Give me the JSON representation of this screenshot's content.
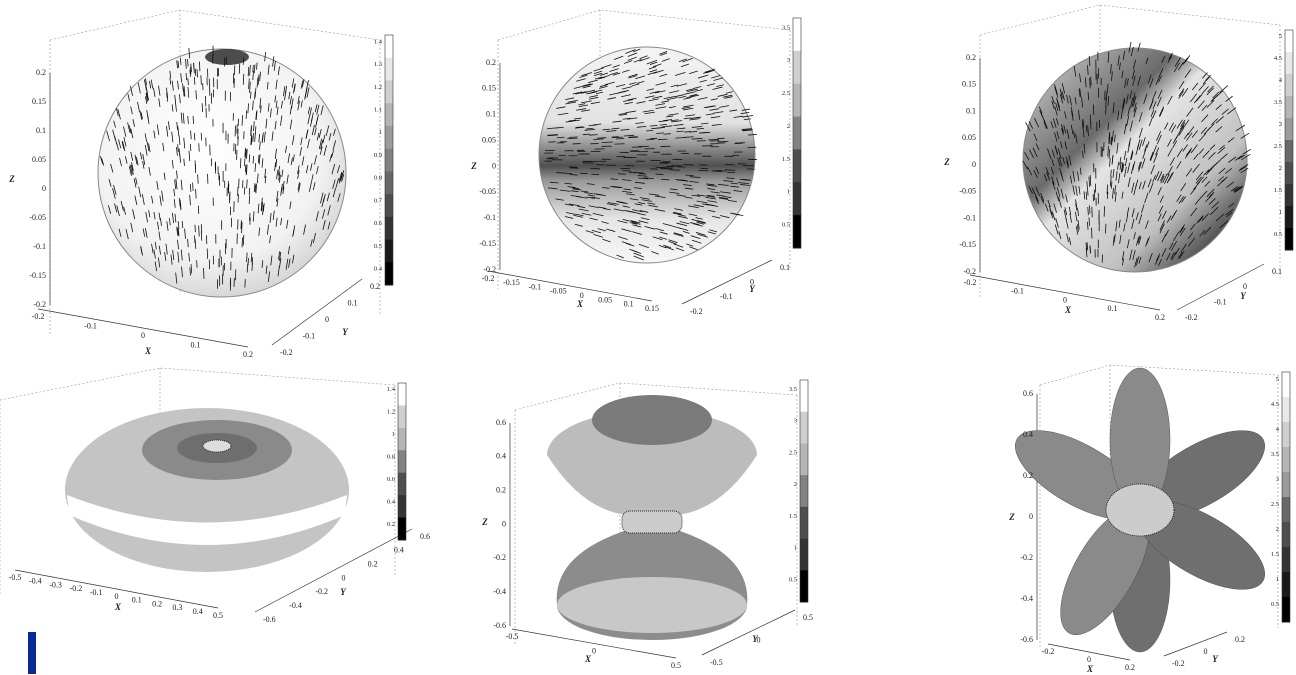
{
  "panels": [
    {
      "labels": {
        "x": "X",
        "y": "Y",
        "z": "Z"
      },
      "z_ticks": [
        "0.2",
        "0.15",
        "0.1",
        "0.05",
        "0",
        "-0.05",
        "-0.1",
        "-0.15",
        "-0.2"
      ],
      "x_ticks": [
        "-0.2",
        "-0.1",
        "0",
        "0.1",
        "0.2"
      ],
      "y_ticks": [
        "-0.2",
        "-0.1",
        "0",
        "0.1",
        "0.2"
      ],
      "colorbar_ticks": [
        "1.4",
        "1.3",
        "1.2",
        "1.1",
        "1",
        "0.9",
        "0.8",
        "0.7",
        "0.6",
        "0.5",
        "0.4"
      ]
    },
    {
      "labels": {
        "x": "X",
        "y": "Y",
        "z": "Z"
      },
      "z_ticks": [
        "0.2",
        "0.15",
        "0.1",
        "0.05",
        "0",
        "-0.05",
        "-0.1",
        "-0.15",
        "-0.2"
      ],
      "x_ticks": [
        "-0.2",
        "-0.15",
        "-0.1",
        "-0.05",
        "0",
        "0.05",
        "0.1",
        "0.15"
      ],
      "y_ticks": [
        "-0.2",
        "-0.1",
        "0",
        "0.1"
      ],
      "colorbar_ticks": [
        "3.5",
        "3",
        "2.5",
        "2",
        "1.5",
        "1",
        "0.5"
      ]
    },
    {
      "labels": {
        "x": "X",
        "y": "Y",
        "z": "Z"
      },
      "z_ticks": [
        "0.2",
        "0.15",
        "0.1",
        "0.05",
        "0",
        "-0.05",
        "-0.1",
        "-0.15",
        "-0.2"
      ],
      "x_ticks": [
        "-0.2",
        "-0.1",
        "0",
        "0.1",
        "0.2"
      ],
      "y_ticks": [
        "-0.2",
        "-0.1",
        "0",
        "0.1"
      ],
      "colorbar_ticks": [
        "5",
        "4.5",
        "4",
        "3.5",
        "3",
        "2.5",
        "2",
        "1.5",
        "1",
        "0.5"
      ]
    },
    {
      "labels": {
        "x": "X",
        "y": "Y"
      },
      "z_ticks": [],
      "x_ticks": [
        "-0.5",
        "-0.4",
        "-0.3",
        "-0.2",
        "-0.1",
        "0",
        "0.1",
        "0.2",
        "0.3",
        "0.4",
        "0.5"
      ],
      "y_ticks": [
        "-0.6",
        "-0.4",
        "-0.2",
        "0",
        "0.2",
        "0.4",
        "0.6"
      ],
      "colorbar_ticks": [
        "1.4",
        "1.2",
        "1",
        "0.8",
        "0.6",
        "0.4",
        "0.2"
      ]
    },
    {
      "labels": {
        "x": "X",
        "y": "Y",
        "z": "Z"
      },
      "z_ticks": [
        "0.6",
        "0.4",
        "0.2",
        "0",
        "-0.2",
        "-0.4",
        "-0.6"
      ],
      "x_ticks": [
        "-0.5",
        "0",
        "0.5"
      ],
      "y_ticks": [
        "-0.5",
        "0",
        "0.5"
      ],
      "colorbar_ticks": [
        "3.5",
        "3",
        "2.5",
        "2",
        "1.5",
        "1",
        "0.5"
      ]
    },
    {
      "labels": {
        "x": "X",
        "y": "Y",
        "z": "Z"
      },
      "z_ticks": [
        "0.6",
        "0.4",
        "0.2",
        "0",
        "-0.2",
        "-0.4",
        "-0.6"
      ],
      "x_ticks": [
        "-0.2",
        "0",
        "0.2"
      ],
      "y_ticks": [
        "-0.2",
        "0",
        "0.2"
      ],
      "colorbar_ticks": [
        "5",
        "4.5",
        "4",
        "3.5",
        "3",
        "2.5",
        "2",
        "1.5",
        "1",
        "0.5"
      ]
    }
  ]
}
